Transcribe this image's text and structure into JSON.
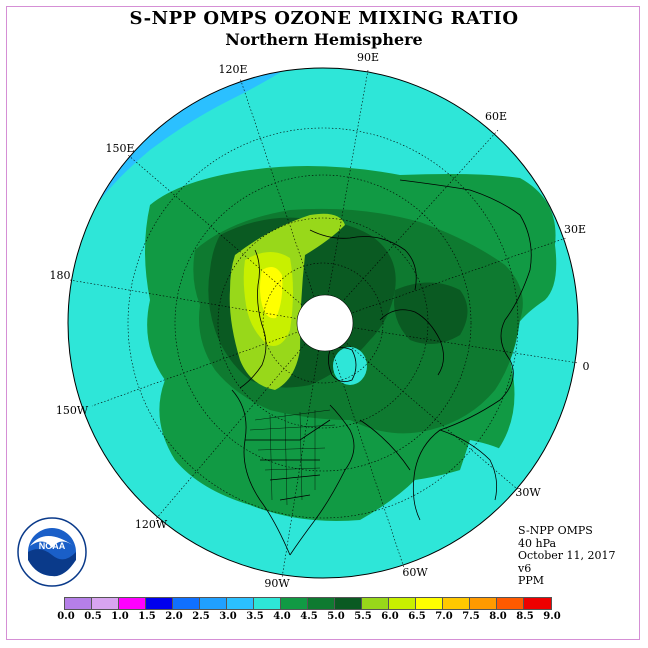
{
  "title": "S-NPP OMPS OZONE MIXING RATIO",
  "subtitle": "Northern Hemisphere",
  "longitude_labels": {
    "lon_90e": "90E",
    "lon_60e": "60E",
    "lon_30e": "30E",
    "lon_0": "0",
    "lon_30w": "30W",
    "lon_60w": "60W",
    "lon_90w": "90W",
    "lon_120w": "120W",
    "lon_150w": "150W",
    "lon_180": "180",
    "lon_150e": "150E",
    "lon_120e": "120E"
  },
  "info": {
    "instrument": "S-NPP OMPS",
    "level": "40 hPa",
    "date": "October 11, 2017",
    "version": "v6",
    "units": "PPM"
  },
  "colorbar": {
    "ticks": [
      "0.0",
      "0.5",
      "1.0",
      "1.5",
      "2.0",
      "2.5",
      "3.0",
      "3.5",
      "4.0",
      "4.5",
      "5.0",
      "5.5",
      "6.0",
      "6.5",
      "7.0",
      "7.5",
      "8.0",
      "8.5",
      "9.0"
    ],
    "colors": [
      "#b57fe8",
      "#d8a4f0",
      "#ff00ff",
      "#0000ee",
      "#1070ff",
      "#20a0ff",
      "#2bc0ff",
      "#2ee6d8",
      "#119a44",
      "#0e7a30",
      "#0a5a22",
      "#98d81a",
      "#c8f000",
      "#ffff00",
      "#ffc800",
      "#ff9a00",
      "#ff5a00",
      "#ee0000",
      "#8b5a3c"
    ]
  },
  "map_fields": {
    "outer_band": "3.5-4.0",
    "main_band": "4.0-4.5",
    "inner_band": "4.5-5.0",
    "core_band": "5.0-5.5",
    "peak_band": "5.5-6.0",
    "max_band": "6.0-6.5",
    "low_band": "3.0-3.5",
    "pole_missing": "no data"
  },
  "logo": {
    "text": "NOAA"
  },
  "colors": {
    "frame": "#d58fd5",
    "band_3_5": "#2ee6d8",
    "band_4_0": "#119a44",
    "band_4_5": "#0e7a30",
    "band_5_0": "#0a5a22",
    "band_5_5": "#98d81a",
    "band_6_0": "#c8f000",
    "band_6_5": "#ffff00",
    "band_3_0": "#2bc0ff"
  }
}
